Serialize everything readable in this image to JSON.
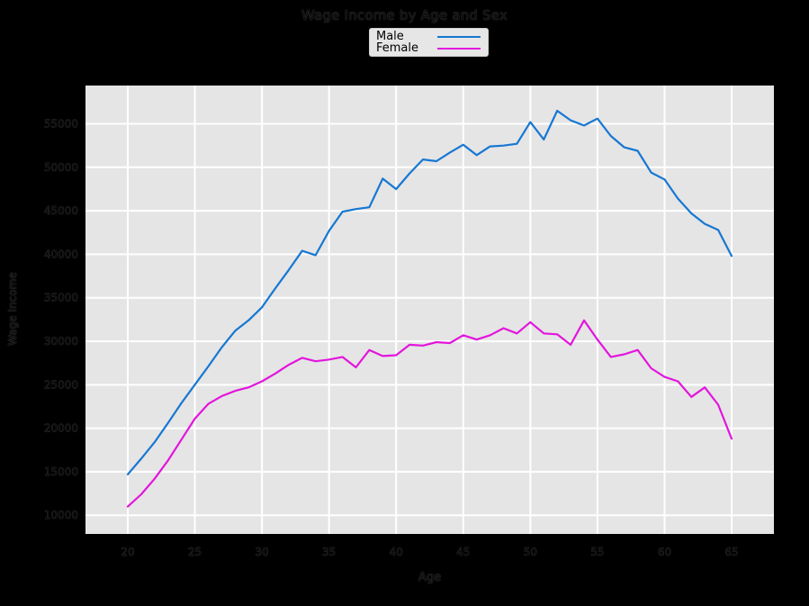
{
  "figure_bg": "#000000",
  "text_color": "#0a0a0a",
  "legend": {
    "bg": "#e6e6e6",
    "entries": [
      {
        "label": "Male",
        "color": "#1777d2"
      },
      {
        "label": "Female",
        "color": "#e315dd"
      }
    ]
  },
  "chart_data": {
    "type": "line",
    "title": "Wage Income by Age and Sex",
    "xlabel": "Age",
    "ylabel": "Wage Income",
    "panel_bg": "#e5e5e5",
    "grid_color": "#ffffff",
    "grid_on": true,
    "legend_position": "top-center",
    "xlim": [
      16.85,
      68.15
    ],
    "ylim": [
      7850,
      59400
    ],
    "x_ticks": [
      20,
      25,
      30,
      35,
      40,
      45,
      50,
      55,
      60,
      65
    ],
    "y_ticks": [
      10000,
      15000,
      20000,
      25000,
      30000,
      35000,
      40000,
      45000,
      50000,
      55000
    ],
    "x": [
      20,
      21,
      22,
      23,
      24,
      25,
      26,
      27,
      28,
      29,
      30,
      31,
      32,
      33,
      34,
      35,
      36,
      37,
      38,
      39,
      40,
      41,
      42,
      43,
      44,
      45,
      46,
      47,
      48,
      49,
      50,
      51,
      52,
      53,
      54,
      55,
      56,
      57,
      58,
      59,
      60,
      61,
      62,
      63,
      64,
      65
    ],
    "series": [
      {
        "name": "Male",
        "color": "#1777d2",
        "values": [
          14700,
          16500,
          18400,
          20600,
          22900,
          25000,
          27100,
          29300,
          31200,
          32400,
          33900,
          36100,
          38200,
          40400,
          39900,
          42700,
          44900,
          45200,
          45400,
          48700,
          47500,
          49300,
          50900,
          50700,
          51700,
          52600,
          51400,
          52400,
          52500,
          52700,
          55200,
          53200,
          56500,
          55400,
          54800,
          55600,
          53600,
          52300,
          51900,
          49400,
          48600,
          46400,
          44700,
          43500,
          42800,
          39800
        ]
      },
      {
        "name": "Female",
        "color": "#e315dd",
        "values": [
          11000,
          12400,
          14200,
          16300,
          18700,
          21100,
          22800,
          23700,
          24300,
          24700,
          25400,
          26300,
          27300,
          28100,
          27700,
          27900,
          28200,
          27000,
          29000,
          28300,
          28400,
          29600,
          29500,
          29900,
          29800,
          30700,
          30200,
          30700,
          31500,
          30900,
          32200,
          30900,
          30800,
          29600,
          32400,
          30200,
          28200,
          28500,
          29000,
          26900,
          25900,
          25400,
          23600,
          24700,
          22700,
          18800
        ]
      }
    ]
  }
}
